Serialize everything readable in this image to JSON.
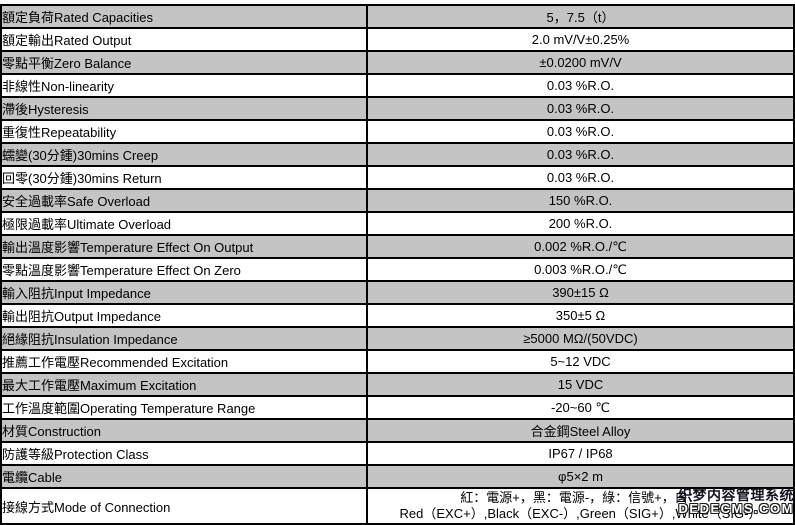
{
  "table": {
    "shaded_row_color": "#c4c4c4",
    "border_color": "#000000",
    "rows": [
      {
        "label": "額定負荷Rated Capacities",
        "value": "5，7.5（t）"
      },
      {
        "label": "額定輸出Rated Output",
        "value": "2.0 mV/V±0.25%"
      },
      {
        "label": "零點平衡Zero Balance",
        "value": "±0.0200 mV/V"
      },
      {
        "label": "非線性Non-linearity",
        "value": "0.03 %R.O."
      },
      {
        "label": "滯後Hysteresis",
        "value": "0.03 %R.O."
      },
      {
        "label": "重復性Repeatability",
        "value": "0.03 %R.O."
      },
      {
        "label": "蠕變(30分鍾)30mins Creep",
        "value": "0.03 %R.O."
      },
      {
        "label": "回零(30分鍾)30mins Return",
        "value": "0.03 %R.O."
      },
      {
        "label": "安全過載率Safe Overload",
        "value": "150 %R.O."
      },
      {
        "label": "極限過載率Ultimate Overload",
        "value": "200 %R.O."
      },
      {
        "label": "輸出溫度影響Temperature Effect On Output",
        "value": "0.002 %R.O./℃"
      },
      {
        "label": "零點溫度影響Temperature Effect On Zero",
        "value": "0.003 %R.O./℃"
      },
      {
        "label": "輸入阻抗Input Impedance",
        "value": "390±15 Ω"
      },
      {
        "label": "輸出阻抗Output Impedance",
        "value": "350±5 Ω"
      },
      {
        "label": "絕緣阻抗Insulation Impedance",
        "value": "≥5000 MΩ/(50VDC)"
      },
      {
        "label": "推薦工作電壓Recommended Excitation",
        "value": "5~12 VDC"
      },
      {
        "label": "最大工作電壓Maximum Excitation",
        "value": "15 VDC"
      },
      {
        "label": "工作溫度範圍Operating Temperature Range",
        "value": "-20~60 ℃"
      },
      {
        "label": "材質Construction",
        "value": "合金鋼Steel Alloy"
      },
      {
        "label": "防護等級Protection Class",
        "value": "IP67 / IP68"
      },
      {
        "label": "電纜Cable",
        "value": "φ5×2 m"
      },
      {
        "label": "接線方式Mode of Connection",
        "value": "紅：電源+，黑：電源-，綠：信號+，白：",
        "value2": "Red（EXC+）,Black（EXC-）,Green（SIG+）,White（SIG-）"
      }
    ]
  },
  "watermark": {
    "line1": "织梦内容管理系统",
    "line2": "DEDECMS.COM"
  }
}
